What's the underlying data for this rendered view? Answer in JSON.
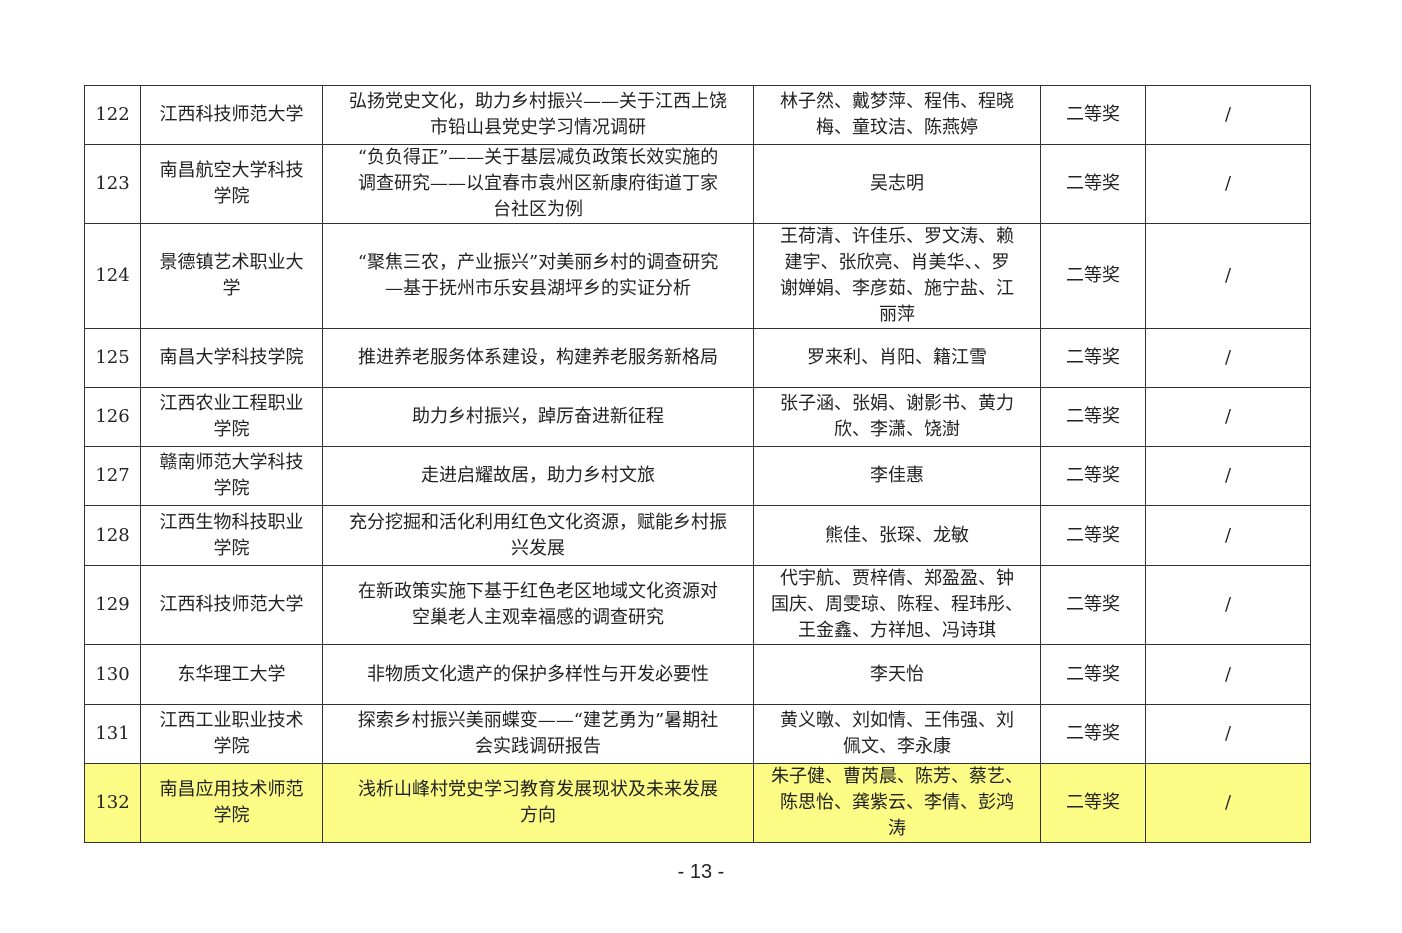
{
  "rows": [
    {
      "no": "122",
      "school": "江西科技师范大学",
      "title": "弘扬党史文化，助力乡村振兴——关于江西上饶\n市铅山县党史学习情况调研",
      "members": "林子然、戴梦萍、程伟、程晓\n梅、童玟洁、陈燕婷",
      "award": "二等奖",
      "note": "/"
    },
    {
      "no": "123",
      "school": "南昌航空大学科技\n学院",
      "title": "“负负得正”——关于基层减负政策长效实施的\n调查研究——以宜春市袁州区新康府街道丁家\n台社区为例",
      "members": "吴志明",
      "award": "二等奖",
      "note": "/"
    },
    {
      "no": "124",
      "school": "景德镇艺术职业大\n学",
      "title": "“聚焦三农，产业振兴”对美丽乡村的调查研究\n—基于抚州市乐安县湖坪乡的实证分析",
      "members": "王荷清、许佳乐、罗文涛、赖\n建宇、张欣亮、肖美华、、罗\n谢婵娟、李彦茹、施宁盐、江\n丽萍",
      "award": "二等奖",
      "note": "/"
    },
    {
      "no": "125",
      "school": "南昌大学科技学院",
      "title": "推进养老服务体系建设，构建养老服务新格局",
      "members": "罗来利、肖阳、籍江雪",
      "award": "二等奖",
      "note": "/"
    },
    {
      "no": "126",
      "school": "江西农业工程职业\n学院",
      "title": "助力乡村振兴，踔厉奋进新征程",
      "members": "张子涵、张娟、谢影书、黄力\n欣、李潇、饶澍",
      "award": "二等奖",
      "note": "/"
    },
    {
      "no": "127",
      "school": "赣南师范大学科技\n学院",
      "title": "走进启耀故居，助力乡村文旅",
      "members": "李佳惠",
      "award": "二等奖",
      "note": "/"
    },
    {
      "no": "128",
      "school": "江西生物科技职业\n学院",
      "title": "充分挖掘和活化利用红色文化资源，赋能乡村振\n兴发展",
      "members": "熊佳、张琛、龙敏",
      "award": "二等奖",
      "note": "/"
    },
    {
      "no": "129",
      "school": "江西科技师范大学",
      "title": "在新政策实施下基于红色老区地域文化资源对\n空巢老人主观幸福感的调查研究",
      "members": "代宇航、贾梓倩、郑盈盈、钟\n国庆、周雯琼、陈程、程玮彤、\n王金鑫、方祥旭、冯诗琪",
      "award": "二等奖",
      "note": "/"
    },
    {
      "no": "130",
      "school": "东华理工大学",
      "title": "非物质文化遗产的保护多样性与开发必要性",
      "members": "李天怡",
      "award": "二等奖",
      "note": "/"
    },
    {
      "no": "131",
      "school": "江西工业职业技术\n学院",
      "title": "探索乡村振兴美丽蝶变——“建艺勇为”暑期社\n会实践调研报告",
      "members": "黄义暾、刘如情、王伟强、刘\n佩文、李永康",
      "award": "二等奖",
      "note": "/"
    },
    {
      "no": "132",
      "school": "南昌应用技术师范\n学院",
      "title": "浅析山峰村党史学习教育发展现状及未来发展\n方向",
      "members": "朱子健、曹芮晨、陈芳、蔡艺、\n陈思怡、龚紫云、李倩、彭鸿\n涛",
      "award": "二等奖",
      "note": "/",
      "highlighted": true
    }
  ],
  "page_number": "- 13 -",
  "highlight_color": "#fbfb86"
}
